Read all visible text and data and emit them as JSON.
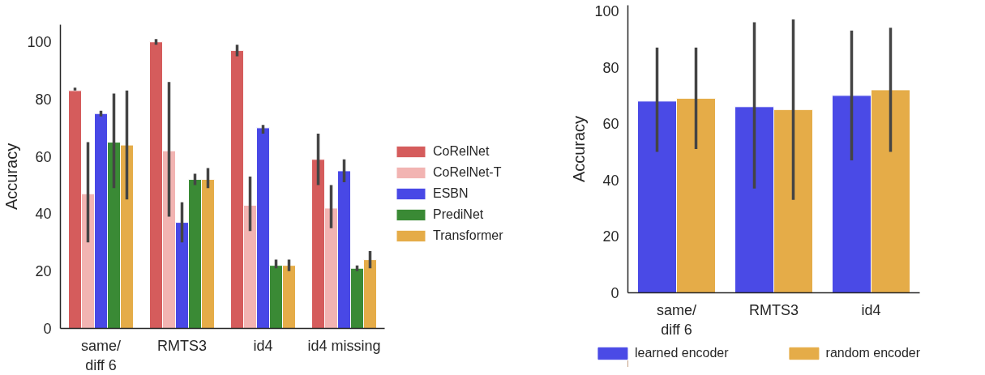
{
  "chart_data": [
    {
      "type": "bar",
      "ylabel": "Accuracy",
      "categories": [
        "same/\ndiff 6",
        "RMTS3",
        "id4",
        "id4 missing"
      ],
      "ylim": [
        0,
        106
      ],
      "yticks": [
        0,
        20,
        40,
        60,
        80,
        100
      ],
      "grid": false,
      "legend": "right",
      "series": [
        {
          "name": "CoRelNet",
          "color": "#d55c5c",
          "values": [
            83,
            100,
            97,
            59
          ],
          "errors": [
            [
              83,
              84
            ],
            [
              99,
              101
            ],
            [
              95,
              99
            ],
            [
              50,
              68
            ]
          ]
        },
        {
          "name": "CoRelNet-T",
          "color": "#f2b4b2",
          "values": [
            47,
            62,
            43,
            42
          ],
          "errors": [
            [
              30,
              65
            ],
            [
              39,
              86
            ],
            [
              34,
              53
            ],
            [
              35,
              50
            ]
          ]
        },
        {
          "name": "ESBN",
          "color": "#4848e6",
          "values": [
            75,
            37,
            70,
            55
          ],
          "errors": [
            [
              74,
              76
            ],
            [
              30,
              44
            ],
            [
              68,
              71
            ],
            [
              51,
              59
            ]
          ]
        },
        {
          "name": "PrediNet",
          "color": "#3a8a35",
          "values": [
            65,
            52,
            22,
            21
          ],
          "errors": [
            [
              49,
              82
            ],
            [
              50,
              54
            ],
            [
              21,
              24
            ],
            [
              20,
              22
            ]
          ]
        },
        {
          "name": "Transformer",
          "color": "#e5ac48",
          "values": [
            64,
            52,
            22,
            24
          ],
          "errors": [
            [
              45,
              83
            ],
            [
              49,
              56
            ],
            [
              20,
              24
            ],
            [
              21,
              27
            ]
          ]
        }
      ]
    },
    {
      "type": "bar",
      "ylabel": "Accuracy",
      "categories": [
        "same/\ndiff 6",
        "RMTS3",
        "id4"
      ],
      "ylim": [
        0,
        102
      ],
      "yticks": [
        0,
        20,
        40,
        60,
        80,
        100
      ],
      "grid": false,
      "legend": "bottom",
      "series": [
        {
          "name": "learned encoder",
          "color": "#4a4ae6",
          "values": [
            68,
            66,
            70
          ],
          "errors": [
            [
              50,
              87
            ],
            [
              37,
              96
            ],
            [
              47,
              93
            ]
          ]
        },
        {
          "name": "random encoder",
          "color": "#e5ac48",
          "values": [
            69,
            65,
            72
          ],
          "errors": [
            [
              51,
              87
            ],
            [
              33,
              97
            ],
            [
              50,
              94
            ]
          ]
        }
      ]
    }
  ]
}
